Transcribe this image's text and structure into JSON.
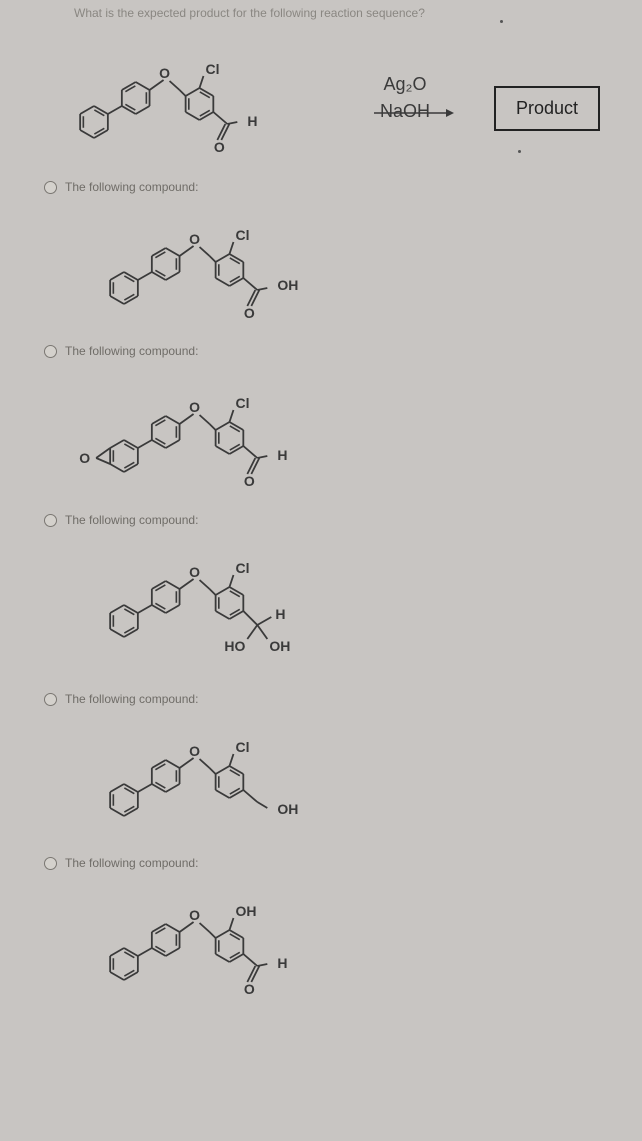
{
  "question": "What is the expected product for the following reaction sequence?",
  "reagents": {
    "r1": "Ag₂O",
    "r2": "NaOH"
  },
  "product_label": "Product",
  "option_label": "The following compound:",
  "colors": {
    "bg": "#c8c5c2",
    "bond": "#3a3a3a",
    "text": "#4a4a4a",
    "faint": "#8a8782",
    "box": "#222222"
  },
  "molecules": {
    "start": {
      "biphenyl": true,
      "ether": true,
      "ring_Cl": true,
      "para": {
        "type": "CHO",
        "labels": [
          "H"
        ]
      }
    },
    "optA": {
      "biphenyl": true,
      "ether": true,
      "ring_Cl": true,
      "para": {
        "type": "COOH",
        "labels": [
          "OH"
        ]
      }
    },
    "optB": {
      "biphenyl_fused_furan": true,
      "ether": true,
      "ring_Cl": true,
      "para": {
        "type": "CHO",
        "labels": [
          "H"
        ]
      }
    },
    "optC": {
      "biphenyl": true,
      "ether": true,
      "ring_Cl": true,
      "para": {
        "type": "gemdiol",
        "labels": [
          "H",
          "HO",
          "OH"
        ]
      }
    },
    "optD": {
      "biphenyl": true,
      "ether": true,
      "ring_Cl": true,
      "para": {
        "type": "CH2OH",
        "labels": [
          "OH"
        ]
      }
    },
    "optE": {
      "biphenyl": true,
      "ether": true,
      "ring_OH": true,
      "para": {
        "type": "CHO",
        "labels": [
          "H"
        ]
      }
    }
  },
  "svg": {
    "bond_width": 1.8,
    "label_font": "bold 14px Arial",
    "small_font": "13px Arial"
  }
}
